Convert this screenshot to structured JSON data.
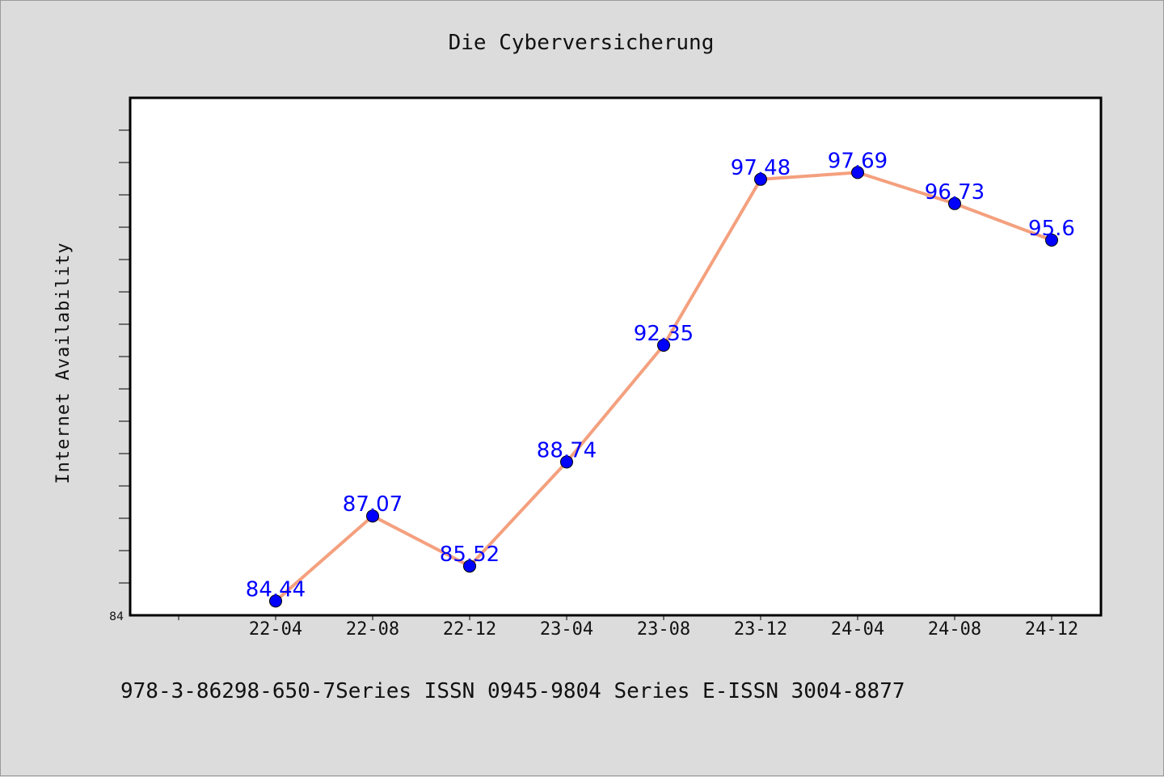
{
  "chart_data": {
    "type": "line",
    "title": "Die Cyberversicherung",
    "xlabel": "",
    "ylabel": "Internet Availability",
    "categories": [
      "22-04",
      "22-08",
      "22-12",
      "23-04",
      "23-08",
      "23-12",
      "24-04",
      "24-08",
      "24-12"
    ],
    "series": [
      {
        "values": [
          84.44,
          87.07,
          85.52,
          88.74,
          92.35,
          97.48,
          97.69,
          96.73,
          95.6
        ]
      }
    ],
    "data_labels": [
      "84.44",
      "87.07",
      "85.52",
      "88.74",
      "92.35",
      "97.48",
      "97.69",
      "96.73",
      "95.6"
    ],
    "ylim": [
      84,
      100
    ],
    "yticks_labeled": [
      "84"
    ],
    "grid": false,
    "legend": "none",
    "colors": {
      "line": "#f4a07e",
      "marker": "#0000ff",
      "data_label": "#0000ff",
      "plot_background": "#ffffff",
      "figure_background": "#dcdcdc"
    }
  },
  "footer": "978-3-86298-650-7Series ISSN 0945-9804 Series E-ISSN 3004-8877"
}
